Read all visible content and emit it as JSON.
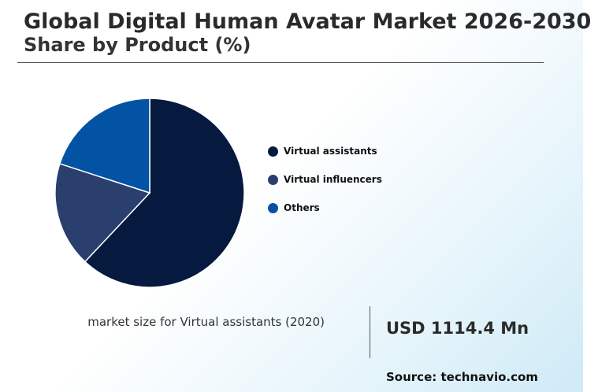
{
  "header": {
    "title": "Global Digital Human Avatar Market 2026-2030",
    "subtitle": "Share by Product (%)"
  },
  "chart_data": {
    "type": "pie",
    "title": "Global Digital Human Avatar Market 2026-2030",
    "subtitle": "Share by Product (%)",
    "categories": [
      "Virtual assistants",
      "Virtual influencers",
      "Others"
    ],
    "values": [
      62,
      18,
      20
    ],
    "colors": [
      "#061a40",
      "#2a3f6e",
      "#0353a4"
    ],
    "legend_position": "right"
  },
  "legend": {
    "items": [
      {
        "label": "Virtual assistants",
        "color": "#061a40"
      },
      {
        "label": "Virtual influencers",
        "color": "#2a3f6e"
      },
      {
        "label": "Others",
        "color": "#0353a4"
      }
    ]
  },
  "metric": {
    "label": "market size for Virtual assistants (2020)",
    "value": "USD 1114.4 Mn"
  },
  "footer": {
    "source": "Source: technavio.com"
  }
}
